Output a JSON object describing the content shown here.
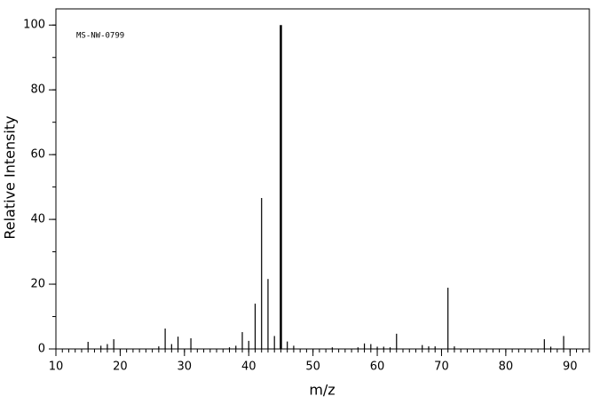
{
  "chart_data": {
    "type": "stem",
    "annotation": "MS-NW-0799",
    "xlabel": "m/z",
    "ylabel": "Relative Intensity",
    "x": [
      15,
      17,
      18,
      19,
      26,
      27,
      28,
      29,
      31,
      37,
      38,
      39,
      40,
      41,
      42,
      43,
      44,
      45,
      46,
      47,
      53,
      57,
      58,
      59,
      60,
      61,
      62,
      63,
      67,
      68,
      69,
      71,
      72,
      86,
      87,
      89
    ],
    "values": [
      2.2,
      1,
      1.5,
      3,
      0.8,
      6.3,
      1.5,
      3.8,
      3.3,
      0.5,
      1,
      5.2,
      2.5,
      14,
      46.6,
      21.6,
      4,
      100,
      2.3,
      1,
      0.5,
      0.5,
      1.7,
      1.5,
      0.7,
      0.7,
      0.5,
      4.7,
      1.2,
      0.8,
      0.8,
      18.9,
      0.8,
      3,
      0.7,
      4
    ],
    "color": "#000000",
    "xlim": [
      10,
      93
    ],
    "ylim": [
      0,
      105
    ],
    "xticks": [
      10,
      20,
      30,
      40,
      50,
      60,
      70,
      80,
      90
    ],
    "yticks": [
      0,
      20,
      40,
      60,
      80,
      100
    ]
  }
}
